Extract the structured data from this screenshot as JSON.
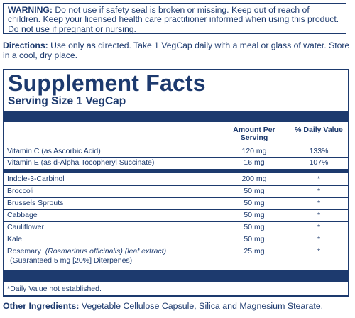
{
  "warning": {
    "label": "WARNING:",
    "text": "Do not use if safety seal is broken or missing. Keep out of reach of children. Keep your licensed health care practitioner informed when using this product. Do not use if pregnant or nursing."
  },
  "directions": {
    "label": "Directions:",
    "text": "Use only as directed. Take 1 VegCap daily with a meal or glass of water. Store in a cool, dry place."
  },
  "facts": {
    "title": "Supplement Facts",
    "serving": "Serving Size 1 VegCap",
    "header_amount": "Amount Per Serving",
    "header_dv": "% Daily Value",
    "rows": [
      {
        "name": "Vitamin C (as Ascorbic Acid)",
        "amount": "120 mg",
        "dv": "133%"
      },
      {
        "name": "Vitamin E (as d-Alpha Tocopheryl Succinate)",
        "amount": "16 mg",
        "dv": "107%"
      },
      {
        "name": "Indole-3-Carbinol",
        "amount": "200 mg",
        "dv": "*"
      },
      {
        "name": "Broccoli",
        "amount": "50 mg",
        "dv": "*"
      },
      {
        "name": "Brussels Sprouts",
        "amount": "50 mg",
        "dv": "*"
      },
      {
        "name": "Cabbage",
        "amount": "50 mg",
        "dv": "*"
      },
      {
        "name": "Cauliflower",
        "amount": "50 mg",
        "dv": "*"
      },
      {
        "name": "Kale",
        "amount": "50 mg",
        "dv": "*"
      },
      {
        "name": "Rosemary",
        "latin": "(Rosmarinus officinalis)",
        "part": "(leaf extract)",
        "sub": "(Guaranteed 5 mg [20%] Diterpenes)",
        "amount": "25 mg",
        "dv": "*"
      }
    ],
    "footnote": "*Daily Value not established."
  },
  "other": {
    "label": "Other Ingredients:",
    "text": "Vegetable Cellulose Capsule, Silica and Magnesium Stearate."
  }
}
